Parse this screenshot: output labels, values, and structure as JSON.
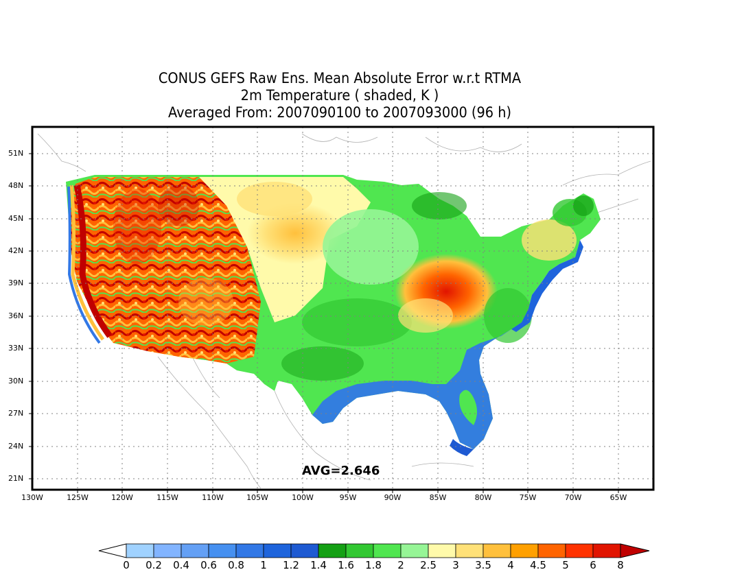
{
  "title": {
    "line1": "CONUS GEFS Raw Ens. Mean Absolute Error w.r.t RTMA",
    "line2": "2m Temperature ( shaded, K )",
    "line3": "Averaged From: 2007090100 to 2007093000 (96 h)"
  },
  "map": {
    "lat_ticks": [
      "51N",
      "48N",
      "45N",
      "42N",
      "39N",
      "36N",
      "33N",
      "30N",
      "27N",
      "24N",
      "21N"
    ],
    "lon_ticks": [
      "130W",
      "125W",
      "120W",
      "115W",
      "110W",
      "105W",
      "100W",
      "95W",
      "90W",
      "85W",
      "80W",
      "75W",
      "70W",
      "65W"
    ],
    "grid": true,
    "avg_label": "AVG=2.646"
  },
  "colorbar": {
    "labels": [
      "0",
      "0.2",
      "0.4",
      "0.6",
      "0.8",
      "1",
      "1.2",
      "1.4",
      "1.6",
      "1.8",
      "2",
      "2.5",
      "3",
      "3.5",
      "4",
      "4.5",
      "5",
      "6",
      "8"
    ],
    "colors": [
      "#a0d2ff",
      "#82b4ff",
      "#64a0f5",
      "#4690f0",
      "#3278e6",
      "#1e64dc",
      "#1e5ad2",
      "#14a014",
      "#32c832",
      "#50e650",
      "#96f596",
      "#fffaaa",
      "#ffe178",
      "#ffc03c",
      "#ffa000",
      "#ff6400",
      "#ff3200",
      "#e11400",
      "#c00000"
    ]
  }
}
